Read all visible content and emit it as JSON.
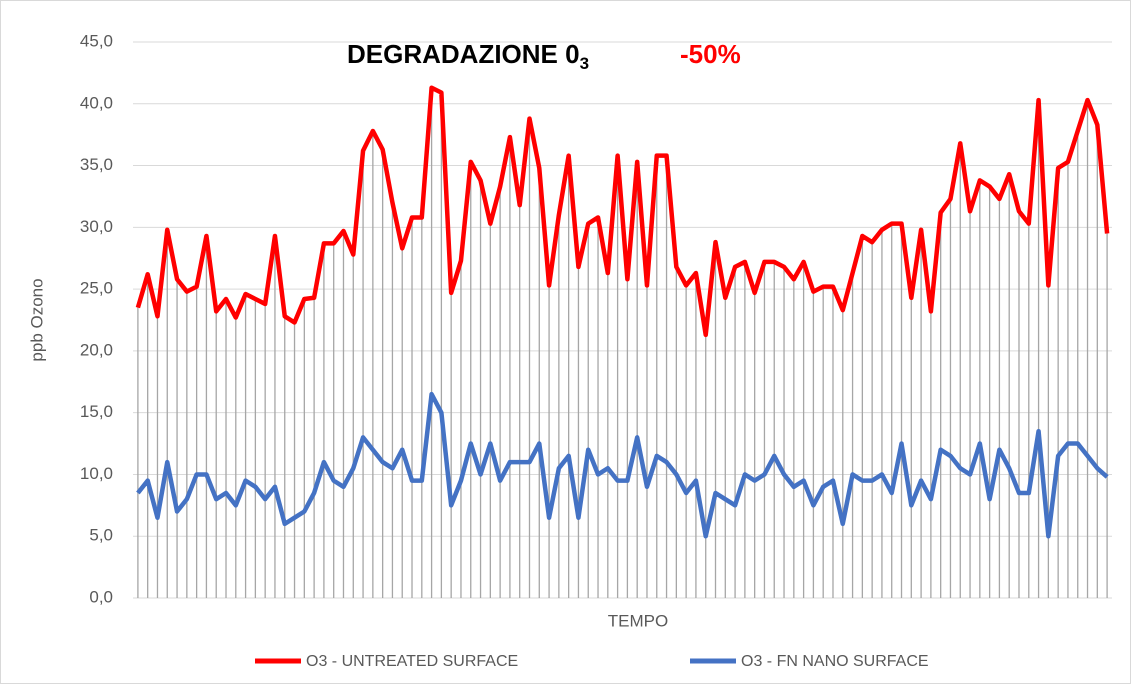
{
  "chart_data": {
    "type": "line",
    "title": "DEGRADAZIONE 0",
    "title_subscript": "3",
    "annotation": "-50%",
    "x_label": "TEMPO",
    "y_label": "ppb Ozono",
    "ylim": [
      0,
      45
    ],
    "yticks": [
      {
        "value": 0,
        "label": "0,0"
      },
      {
        "value": 5,
        "label": "5,0"
      },
      {
        "value": 10,
        "label": "10,0"
      },
      {
        "value": 15,
        "label": "15,0"
      },
      {
        "value": 20,
        "label": "20,0"
      },
      {
        "value": 25,
        "label": "25,0"
      },
      {
        "value": 30,
        "label": "30,0"
      },
      {
        "value": 35,
        "label": "35,0"
      },
      {
        "value": 40,
        "label": "40,0"
      },
      {
        "value": 45,
        "label": "45,0"
      }
    ],
    "grid": true,
    "drop_lines": true,
    "legend": "bottom",
    "series": [
      {
        "name": "O3 - UNTREATED SURFACE",
        "color": "#ff0000",
        "values": [
          23.5,
          26.2,
          22.8,
          29.8,
          25.8,
          24.8,
          25.2,
          29.3,
          23.2,
          24.2,
          22.7,
          24.6,
          24.2,
          23.8,
          29.3,
          22.8,
          22.3,
          24.2,
          24.3,
          28.7,
          28.7,
          29.7,
          27.8,
          36.2,
          37.8,
          36.3,
          32.0,
          28.3,
          30.8,
          30.8,
          41.3,
          40.9,
          24.7,
          27.3,
          35.3,
          33.8,
          30.3,
          33.3,
          37.3,
          31.8,
          38.8,
          34.8,
          25.3,
          31.0,
          35.8,
          26.8,
          30.3,
          30.8,
          26.3,
          35.8,
          25.8,
          35.3,
          25.3,
          35.8,
          35.8,
          26.8,
          25.3,
          26.3,
          21.3,
          28.8,
          24.3,
          26.8,
          27.2,
          24.7,
          27.2,
          27.2,
          26.8,
          25.8,
          27.2,
          24.8,
          25.2,
          25.2,
          23.3,
          26.3,
          29.3,
          28.8,
          29.8,
          30.3,
          30.3,
          24.3,
          29.8,
          23.2,
          31.2,
          32.3,
          36.8,
          31.3,
          33.8,
          33.3,
          32.3,
          34.3,
          31.3,
          30.3,
          40.3,
          25.3,
          34.8,
          35.3,
          37.8,
          40.3,
          38.3,
          29.5
        ]
      },
      {
        "name": "O3 - FN NANO SURFACE",
        "color": "#4472c4",
        "values": [
          8.5,
          9.5,
          6.5,
          11.0,
          7.0,
          8.0,
          10.0,
          10.0,
          8.0,
          8.5,
          7.5,
          9.5,
          9.0,
          8.0,
          9.0,
          6.0,
          6.5,
          7.0,
          8.5,
          11.0,
          9.5,
          9.0,
          10.5,
          13.0,
          12.0,
          11.0,
          10.5,
          12.0,
          9.5,
          9.5,
          16.5,
          15.0,
          7.5,
          9.5,
          12.5,
          10.0,
          12.5,
          9.5,
          11.0,
          11.0,
          11.0,
          12.5,
          6.5,
          10.5,
          11.5,
          6.5,
          12.0,
          10.0,
          10.5,
          9.5,
          9.5,
          13.0,
          9.0,
          11.5,
          11.0,
          10.0,
          8.5,
          9.5,
          5.0,
          8.5,
          8.0,
          7.5,
          10.0,
          9.5,
          10.0,
          11.5,
          10.0,
          9.0,
          9.5,
          7.5,
          9.0,
          9.5,
          6.0,
          10.0,
          9.5,
          9.5,
          10.0,
          8.5,
          12.5,
          7.5,
          9.5,
          8.0,
          12.0,
          11.5,
          10.5,
          10.0,
          12.5,
          8.0,
          12.0,
          10.5,
          8.5,
          8.5,
          13.5,
          5.0,
          11.5,
          12.5,
          12.5,
          11.5,
          10.5,
          9.8
        ]
      }
    ]
  }
}
